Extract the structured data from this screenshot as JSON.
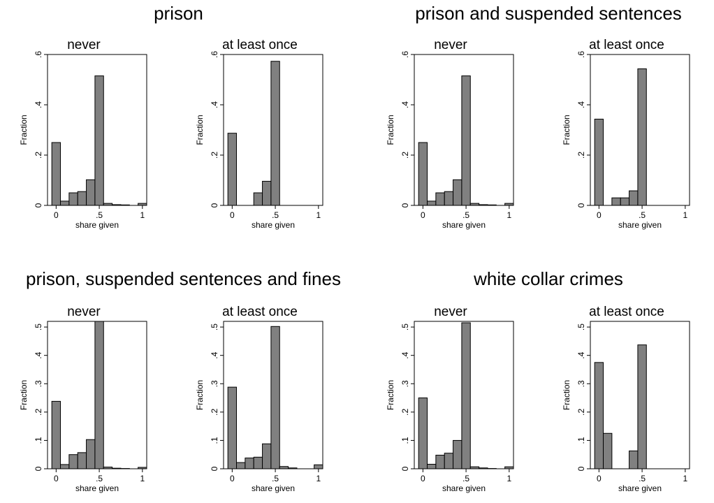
{
  "chart_data": [
    {
      "type": "bar",
      "title": "prison",
      "panels": [
        {
          "title": "never",
          "xlabel": "share given",
          "ylabel": "Fraction",
          "bin_start": -0.05,
          "bin_width": 0.1,
          "values": [
            0.25,
            0.017,
            0.05,
            0.055,
            0.102,
            0.515,
            0.008,
            0.003,
            0.002,
            0.0,
            0.008
          ],
          "xticks": [
            0,
            0.5,
            1
          ],
          "xtick_labels": [
            "0",
            ".5",
            "1"
          ],
          "yticks": [
            0,
            0.2,
            0.4,
            0.6
          ],
          "ytick_labels": [
            "0",
            ".2",
            ".4",
            ".6"
          ],
          "xlim": [
            -0.1,
            1.05
          ],
          "ylim": [
            0,
            0.6
          ]
        },
        {
          "title": "at least once",
          "xlabel": "share given",
          "ylabel": "Fraction",
          "bin_start": -0.05,
          "bin_width": 0.1,
          "values": [
            0.287,
            0.0,
            0.0,
            0.05,
            0.096,
            0.573,
            0.0,
            0.0,
            0.0,
            0.0,
            0.0
          ],
          "xticks": [
            0,
            0.5,
            1
          ],
          "xtick_labels": [
            "0",
            ".5",
            "1"
          ],
          "yticks": [
            0,
            0.2,
            0.4,
            0.6
          ],
          "ytick_labels": [
            "0",
            ".2",
            ".4",
            ".6"
          ],
          "xlim": [
            -0.1,
            1.05
          ],
          "ylim": [
            0,
            0.6
          ]
        }
      ]
    },
    {
      "type": "bar",
      "title": "prison and suspended sentences",
      "panels": [
        {
          "title": "never",
          "xlabel": "share given",
          "ylabel": "Fraction",
          "bin_start": -0.05,
          "bin_width": 0.1,
          "values": [
            0.25,
            0.017,
            0.05,
            0.055,
            0.102,
            0.515,
            0.008,
            0.003,
            0.002,
            0.0,
            0.008
          ],
          "xticks": [
            0,
            0.5,
            1
          ],
          "xtick_labels": [
            "0",
            ".5",
            "1"
          ],
          "yticks": [
            0,
            0.2,
            0.4,
            0.6
          ],
          "ytick_labels": [
            "0",
            ".2",
            ".4",
            ".6"
          ],
          "xlim": [
            -0.1,
            1.05
          ],
          "ylim": [
            0,
            0.6
          ]
        },
        {
          "title": "at least once",
          "xlabel": "share given",
          "ylabel": "Fraction",
          "bin_start": -0.05,
          "bin_width": 0.1,
          "values": [
            0.343,
            0.0,
            0.03,
            0.03,
            0.058,
            0.543,
            0.0,
            0.0,
            0.0,
            0.0,
            0.0
          ],
          "xticks": [
            0,
            0.5,
            1
          ],
          "xtick_labels": [
            "0",
            ".5",
            "1"
          ],
          "yticks": [
            0,
            0.2,
            0.4,
            0.6
          ],
          "ytick_labels": [
            "0",
            ".2",
            ".4",
            ".6"
          ],
          "xlim": [
            -0.1,
            1.05
          ],
          "ylim": [
            0,
            0.6
          ]
        }
      ]
    },
    {
      "type": "bar",
      "title": "prison, suspended sentences and fines",
      "panels": [
        {
          "title": "never",
          "xlabel": "share given",
          "ylabel": "Fraction",
          "bin_start": -0.05,
          "bin_width": 0.1,
          "values": [
            0.238,
            0.015,
            0.05,
            0.057,
            0.103,
            0.52,
            0.006,
            0.002,
            0.001,
            0.0,
            0.005
          ],
          "xticks": [
            0,
            0.5,
            1
          ],
          "xtick_labels": [
            "0",
            ".5",
            "1"
          ],
          "yticks": [
            0,
            0.1,
            0.2,
            0.3,
            0.4,
            0.5
          ],
          "ytick_labels": [
            "0",
            ".1",
            ".2",
            ".3",
            ".4",
            ".5"
          ],
          "xlim": [
            -0.1,
            1.05
          ],
          "ylim": [
            0,
            0.52
          ]
        },
        {
          "title": "at least once",
          "xlabel": "share given",
          "ylabel": "Fraction",
          "bin_start": -0.05,
          "bin_width": 0.1,
          "values": [
            0.288,
            0.022,
            0.038,
            0.041,
            0.088,
            0.502,
            0.008,
            0.003,
            0.0,
            0.0,
            0.014
          ],
          "xticks": [
            0,
            0.5,
            1
          ],
          "xtick_labels": [
            "0",
            ".5",
            "1"
          ],
          "yticks": [
            0,
            0.1,
            0.2,
            0.3,
            0.4,
            0.5
          ],
          "ytick_labels": [
            "0",
            ".1",
            ".2",
            ".3",
            ".4",
            ".5"
          ],
          "xlim": [
            -0.1,
            1.05
          ],
          "ylim": [
            0,
            0.52
          ]
        }
      ]
    },
    {
      "type": "bar",
      "title": "white collar crimes",
      "panels": [
        {
          "title": "never",
          "xlabel": "share given",
          "ylabel": "Fraction",
          "bin_start": -0.05,
          "bin_width": 0.1,
          "values": [
            0.25,
            0.016,
            0.048,
            0.055,
            0.1,
            0.515,
            0.007,
            0.003,
            0.001,
            0.0,
            0.007
          ],
          "xticks": [
            0,
            0.5,
            1
          ],
          "xtick_labels": [
            "0",
            ".5",
            "1"
          ],
          "yticks": [
            0,
            0.1,
            0.2,
            0.3,
            0.4,
            0.5
          ],
          "ytick_labels": [
            "0",
            ".1",
            ".2",
            ".3",
            ".4",
            ".5"
          ],
          "xlim": [
            -0.1,
            1.05
          ],
          "ylim": [
            0,
            0.52
          ]
        },
        {
          "title": "at least once",
          "xlabel": "share given",
          "ylabel": "Fraction",
          "bin_start": -0.05,
          "bin_width": 0.1,
          "values": [
            0.375,
            0.125,
            0.0,
            0.0,
            0.063,
            0.437,
            0.0,
            0.0,
            0.0,
            0.0,
            0.0
          ],
          "xticks": [
            0,
            0.5,
            1
          ],
          "xtick_labels": [
            "0",
            ".5",
            "1"
          ],
          "yticks": [
            0,
            0.1,
            0.2,
            0.3,
            0.4,
            0.5
          ],
          "ytick_labels": [
            "0",
            ".1",
            ".2",
            ".3",
            ".4",
            ".5"
          ],
          "xlim": [
            -0.1,
            1.05
          ],
          "ylim": [
            0,
            0.52
          ]
        }
      ]
    }
  ]
}
